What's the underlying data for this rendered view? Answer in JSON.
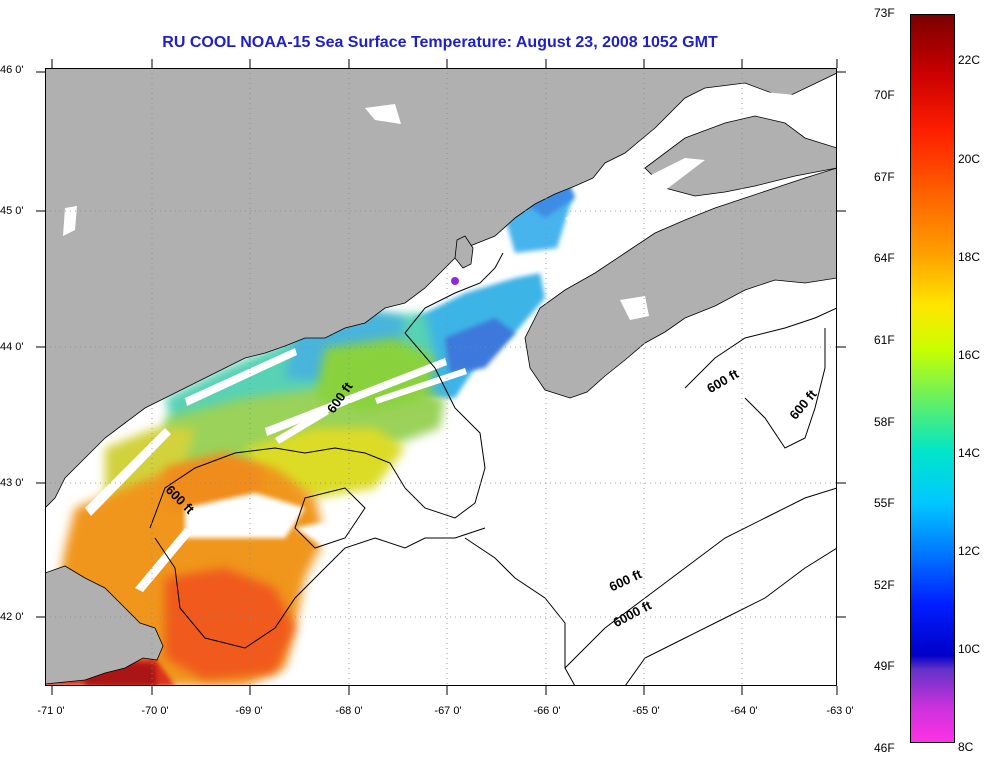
{
  "title": "RU COOL  NOAA-15  Sea Surface Temperature:  August 23, 2008 1052 GMT",
  "lat_ticks": [
    "46 0'",
    "45 0'",
    "44 0'",
    "43 0'",
    "42 0'"
  ],
  "lon_ticks": [
    "-71 0'",
    "-70 0'",
    "-69 0'",
    "-68 0'",
    "-67 0'",
    "-66 0'",
    "-65 0'",
    "-64 0'",
    "-63 0'"
  ],
  "colorbar": {
    "fahrenheit": [
      "73F",
      "70F",
      "67F",
      "64F",
      "61F",
      "58F",
      "55F",
      "52F",
      "49F",
      "46F"
    ],
    "celsius": [
      "22C",
      "20C",
      "18C",
      "16C",
      "14C",
      "12C",
      "10C",
      "8C"
    ]
  },
  "contour_labels": [
    "600 ft",
    "600 ft",
    "600 ft",
    "600 ft",
    "600 ft",
    "6000 ft"
  ],
  "colors": {
    "title": "#1f1fc8",
    "land": "#b0b0b0",
    "ocean_no_data": "#ffffff",
    "gridline": "#888888"
  }
}
